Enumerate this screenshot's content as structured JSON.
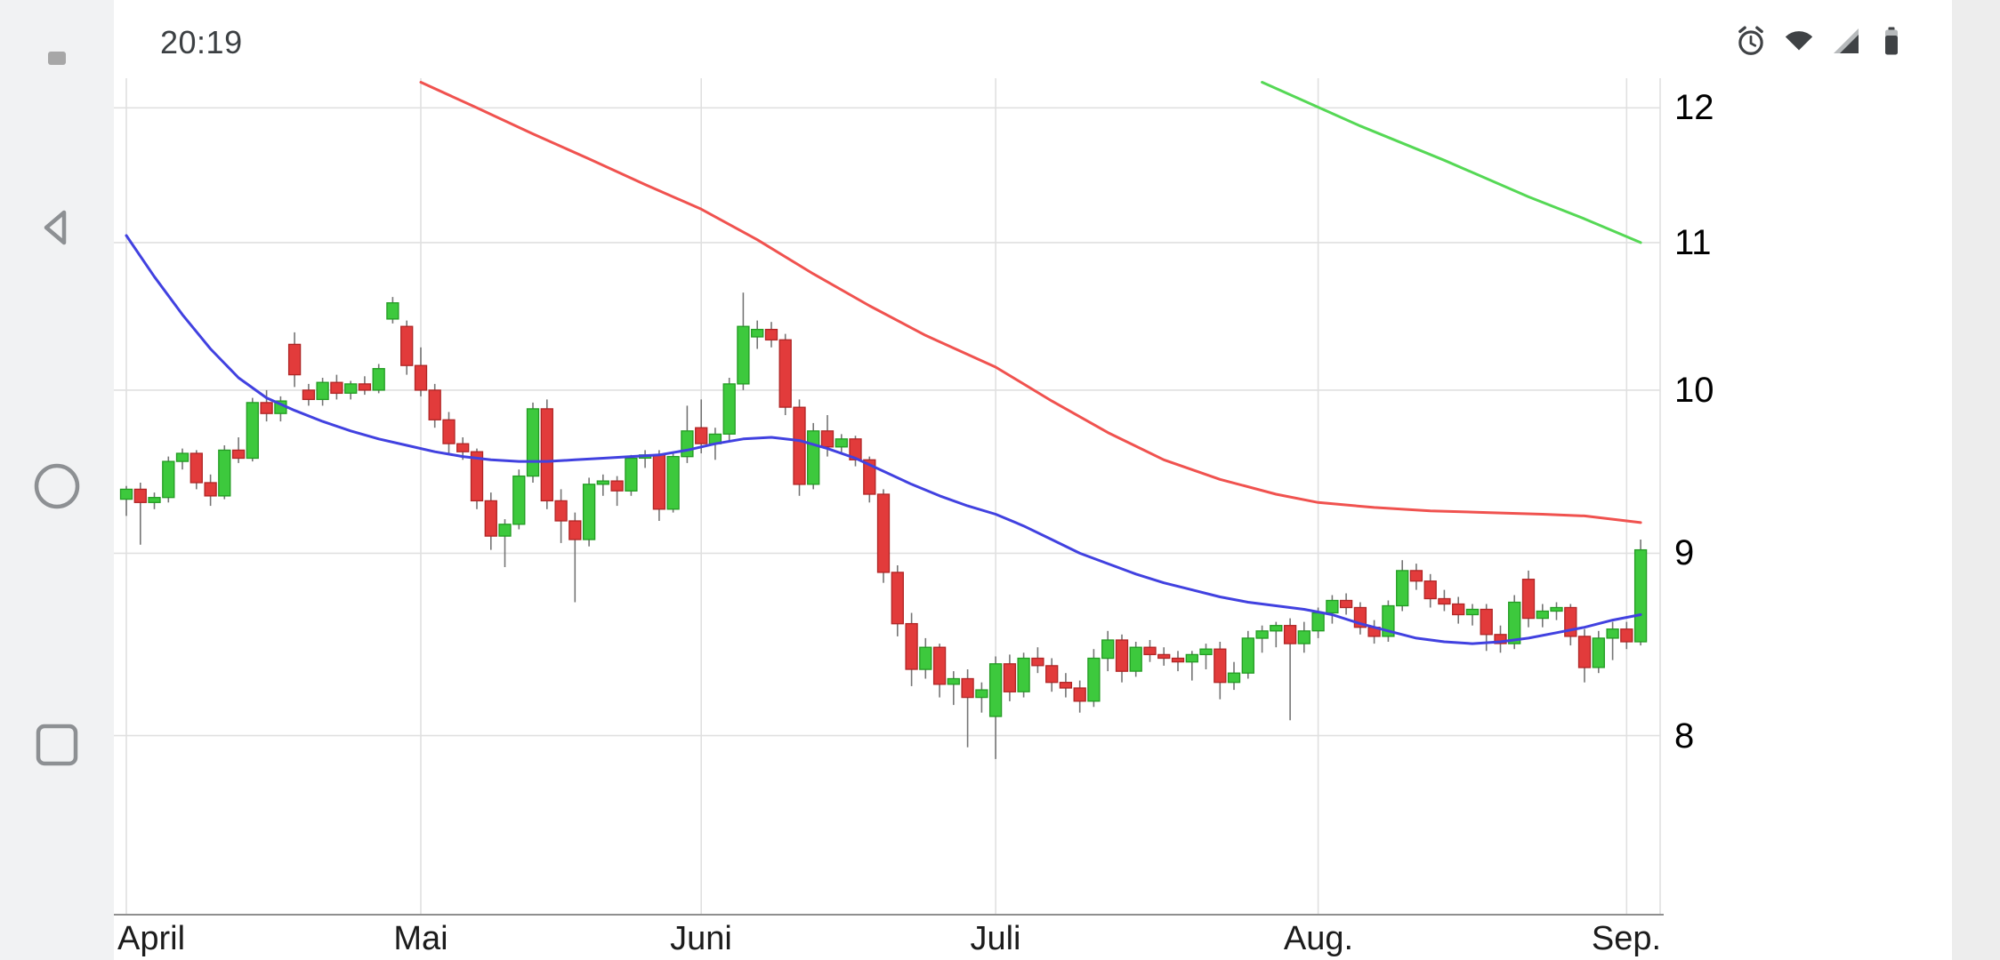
{
  "statusbar": {
    "time": "20:19",
    "icons": [
      "alarm-icon",
      "wifi-icon",
      "signal-icon",
      "battery-icon"
    ]
  },
  "navigation": {
    "buttons": [
      "back",
      "home",
      "recents"
    ]
  },
  "colors": {
    "up": "#3dc93d",
    "up_border": "#239b23",
    "down": "#e23b3b",
    "down_border": "#b02525",
    "wick": "#757575",
    "grid": "#e0e0e0",
    "axis": "#8f8f8f",
    "ma_long_red": "#f0524f",
    "ma_short_blue": "#4141e0",
    "ma_green": "#55d855",
    "navbar_bg": "#f1f2f3",
    "status_fg": "#3f4245"
  },
  "chart_data": {
    "type": "candlestick",
    "title": "",
    "x_axis": {
      "labels": [
        "April",
        "Mai",
        "Juni",
        "Juli",
        "Aug.",
        "Sep."
      ],
      "tick_indices": [
        0,
        21,
        41,
        62,
        85,
        107
      ]
    },
    "y_axis": {
      "ticks": [
        8,
        9,
        10,
        11,
        12
      ],
      "scale": "log",
      "visible_range": [
        7.1,
        12.2
      ],
      "position": "right"
    },
    "series": [
      {
        "name": "price-candles",
        "type": "candlestick",
        "ohlc": [
          [
            9.32,
            9.4,
            9.22,
            9.38
          ],
          [
            9.38,
            9.42,
            9.05,
            9.3
          ],
          [
            9.3,
            9.36,
            9.26,
            9.33
          ],
          [
            9.33,
            9.58,
            9.3,
            9.55
          ],
          [
            9.55,
            9.63,
            9.5,
            9.6
          ],
          [
            9.6,
            9.62,
            9.38,
            9.42
          ],
          [
            9.42,
            9.47,
            9.28,
            9.34
          ],
          [
            9.34,
            9.65,
            9.32,
            9.62
          ],
          [
            9.62,
            9.7,
            9.54,
            9.57
          ],
          [
            9.57,
            9.95,
            9.55,
            9.92
          ],
          [
            9.92,
            10.0,
            9.8,
            9.85
          ],
          [
            9.85,
            9.96,
            9.8,
            9.93
          ],
          [
            10.3,
            10.38,
            10.02,
            10.1
          ],
          [
            10.0,
            10.04,
            9.9,
            9.94
          ],
          [
            9.94,
            10.08,
            9.9,
            10.05
          ],
          [
            10.05,
            10.1,
            9.94,
            9.98
          ],
          [
            9.98,
            10.06,
            9.94,
            10.04
          ],
          [
            10.04,
            10.09,
            9.97,
            10.0
          ],
          [
            10.0,
            10.17,
            9.98,
            10.14
          ],
          [
            10.47,
            10.62,
            10.44,
            10.58
          ],
          [
            10.42,
            10.46,
            10.1,
            10.16
          ],
          [
            10.16,
            10.28,
            9.96,
            10.0
          ],
          [
            10.0,
            10.04,
            9.76,
            9.81
          ],
          [
            9.81,
            9.86,
            9.6,
            9.66
          ],
          [
            9.66,
            9.7,
            9.56,
            9.61
          ],
          [
            9.61,
            9.63,
            9.26,
            9.31
          ],
          [
            9.31,
            9.36,
            9.02,
            9.1
          ],
          [
            9.1,
            9.2,
            8.92,
            9.17
          ],
          [
            9.17,
            9.5,
            9.14,
            9.46
          ],
          [
            9.46,
            9.92,
            9.42,
            9.88
          ],
          [
            9.88,
            9.94,
            9.26,
            9.31
          ],
          [
            9.31,
            9.38,
            9.06,
            9.19
          ],
          [
            9.19,
            9.24,
            8.72,
            9.08
          ],
          [
            9.08,
            9.45,
            9.04,
            9.41
          ],
          [
            9.41,
            9.47,
            9.34,
            9.43
          ],
          [
            9.43,
            9.46,
            9.28,
            9.37
          ],
          [
            9.37,
            9.59,
            9.34,
            9.57
          ],
          [
            9.57,
            9.62,
            9.51,
            9.59
          ],
          [
            9.59,
            9.62,
            9.19,
            9.26
          ],
          [
            9.26,
            9.61,
            9.24,
            9.58
          ],
          [
            9.58,
            9.9,
            9.54,
            9.74
          ],
          [
            9.76,
            9.94,
            9.6,
            9.66
          ],
          [
            9.66,
            9.76,
            9.56,
            9.72
          ],
          [
            9.72,
            10.08,
            9.68,
            10.04
          ],
          [
            10.04,
            10.65,
            10.0,
            10.42
          ],
          [
            10.35,
            10.46,
            10.27,
            10.4
          ],
          [
            10.4,
            10.45,
            10.28,
            10.33
          ],
          [
            10.33,
            10.37,
            9.84,
            9.89
          ],
          [
            9.89,
            9.94,
            9.34,
            9.41
          ],
          [
            9.41,
            9.79,
            9.38,
            9.74
          ],
          [
            9.74,
            9.84,
            9.58,
            9.64
          ],
          [
            9.64,
            9.72,
            9.6,
            9.69
          ],
          [
            9.69,
            9.71,
            9.52,
            9.56
          ],
          [
            9.56,
            9.58,
            9.3,
            9.35
          ],
          [
            9.35,
            9.38,
            8.83,
            8.89
          ],
          [
            8.89,
            8.93,
            8.53,
            8.6
          ],
          [
            8.6,
            8.66,
            8.26,
            8.35
          ],
          [
            8.35,
            8.52,
            8.3,
            8.47
          ],
          [
            8.47,
            8.49,
            8.2,
            8.27
          ],
          [
            8.27,
            8.34,
            8.16,
            8.3
          ],
          [
            8.3,
            8.35,
            7.94,
            8.2
          ],
          [
            8.2,
            8.28,
            8.12,
            8.24
          ],
          [
            8.1,
            8.42,
            7.88,
            8.38
          ],
          [
            8.38,
            8.43,
            8.18,
            8.23
          ],
          [
            8.23,
            8.44,
            8.2,
            8.41
          ],
          [
            8.41,
            8.47,
            8.33,
            8.37
          ],
          [
            8.37,
            8.41,
            8.23,
            8.28
          ],
          [
            8.28,
            8.33,
            8.2,
            8.25
          ],
          [
            8.25,
            8.29,
            8.12,
            8.18
          ],
          [
            8.18,
            8.46,
            8.15,
            8.41
          ],
          [
            8.41,
            8.56,
            8.34,
            8.51
          ],
          [
            8.51,
            8.54,
            8.28,
            8.34
          ],
          [
            8.34,
            8.5,
            8.31,
            8.47
          ],
          [
            8.47,
            8.51,
            8.39,
            8.43
          ],
          [
            8.43,
            8.47,
            8.37,
            8.41
          ],
          [
            8.41,
            8.45,
            8.34,
            8.39
          ],
          [
            8.39,
            8.45,
            8.29,
            8.43
          ],
          [
            8.43,
            8.49,
            8.35,
            8.46
          ],
          [
            8.46,
            8.5,
            8.19,
            8.28
          ],
          [
            8.28,
            8.39,
            8.24,
            8.33
          ],
          [
            8.33,
            8.56,
            8.3,
            8.52
          ],
          [
            8.52,
            8.59,
            8.44,
            8.56
          ],
          [
            8.56,
            8.61,
            8.47,
            8.59
          ],
          [
            8.59,
            8.63,
            8.08,
            8.49
          ],
          [
            8.49,
            8.61,
            8.44,
            8.56
          ],
          [
            8.56,
            8.69,
            8.52,
            8.66
          ],
          [
            8.66,
            8.76,
            8.6,
            8.73
          ],
          [
            8.73,
            8.77,
            8.65,
            8.69
          ],
          [
            8.69,
            8.72,
            8.54,
            8.58
          ],
          [
            8.58,
            8.62,
            8.49,
            8.53
          ],
          [
            8.53,
            8.73,
            8.5,
            8.7
          ],
          [
            8.7,
            8.96,
            8.67,
            8.9
          ],
          [
            8.9,
            8.94,
            8.79,
            8.84
          ],
          [
            8.84,
            8.88,
            8.69,
            8.74
          ],
          [
            8.74,
            8.79,
            8.67,
            8.71
          ],
          [
            8.71,
            8.75,
            8.6,
            8.65
          ],
          [
            8.65,
            8.71,
            8.59,
            8.68
          ],
          [
            8.68,
            8.71,
            8.45,
            8.54
          ],
          [
            8.54,
            8.59,
            8.44,
            8.49
          ],
          [
            8.49,
            8.76,
            8.46,
            8.72
          ],
          [
            8.85,
            8.9,
            8.58,
            8.63
          ],
          [
            8.63,
            8.71,
            8.58,
            8.67
          ],
          [
            8.67,
            8.72,
            8.62,
            8.69
          ],
          [
            8.69,
            8.71,
            8.48,
            8.53
          ],
          [
            8.53,
            8.57,
            8.28,
            8.36
          ],
          [
            8.36,
            8.56,
            8.33,
            8.52
          ],
          [
            8.52,
            8.61,
            8.4,
            8.57
          ],
          [
            8.57,
            8.61,
            8.46,
            8.5
          ],
          [
            8.5,
            9.08,
            8.48,
            9.02
          ]
        ]
      },
      {
        "name": "ma-long-red",
        "type": "line",
        "color": "#f0524f",
        "points": [
          [
            21,
            12.2
          ],
          [
            25,
            12.0
          ],
          [
            29,
            11.8
          ],
          [
            33,
            11.61
          ],
          [
            37,
            11.42
          ],
          [
            41,
            11.24
          ],
          [
            45,
            11.02
          ],
          [
            49,
            10.78
          ],
          [
            53,
            10.56
          ],
          [
            57,
            10.36
          ],
          [
            62,
            10.15
          ],
          [
            66,
            9.93
          ],
          [
            70,
            9.73
          ],
          [
            74,
            9.56
          ],
          [
            78,
            9.44
          ],
          [
            82,
            9.35
          ],
          [
            85,
            9.3
          ],
          [
            89,
            9.27
          ],
          [
            93,
            9.25
          ],
          [
            97,
            9.24
          ],
          [
            101,
            9.23
          ],
          [
            104,
            9.22
          ],
          [
            108,
            9.18
          ]
        ]
      },
      {
        "name": "ma-short-blue",
        "type": "line",
        "color": "#4141e0",
        "points": [
          [
            0,
            11.05
          ],
          [
            2,
            10.76
          ],
          [
            4,
            10.5
          ],
          [
            6,
            10.27
          ],
          [
            8,
            10.08
          ],
          [
            10,
            9.95
          ],
          [
            12,
            9.87
          ],
          [
            14,
            9.8
          ],
          [
            16,
            9.74
          ],
          [
            18,
            9.69
          ],
          [
            20,
            9.65
          ],
          [
            22,
            9.61
          ],
          [
            24,
            9.58
          ],
          [
            26,
            9.56
          ],
          [
            28,
            9.55
          ],
          [
            30,
            9.55
          ],
          [
            32,
            9.56
          ],
          [
            34,
            9.57
          ],
          [
            36,
            9.58
          ],
          [
            38,
            9.59
          ],
          [
            40,
            9.62
          ],
          [
            42,
            9.66
          ],
          [
            44,
            9.69
          ],
          [
            46,
            9.7
          ],
          [
            48,
            9.68
          ],
          [
            50,
            9.63
          ],
          [
            52,
            9.57
          ],
          [
            54,
            9.49
          ],
          [
            56,
            9.41
          ],
          [
            58,
            9.34
          ],
          [
            60,
            9.28
          ],
          [
            62,
            9.23
          ],
          [
            64,
            9.16
          ],
          [
            66,
            9.08
          ],
          [
            68,
            9.0
          ],
          [
            70,
            8.94
          ],
          [
            72,
            8.88
          ],
          [
            74,
            8.83
          ],
          [
            76,
            8.79
          ],
          [
            78,
            8.75
          ],
          [
            80,
            8.72
          ],
          [
            82,
            8.7
          ],
          [
            84,
            8.68
          ],
          [
            86,
            8.65
          ],
          [
            88,
            8.6
          ],
          [
            90,
            8.56
          ],
          [
            92,
            8.52
          ],
          [
            94,
            8.5
          ],
          [
            96,
            8.49
          ],
          [
            98,
            8.5
          ],
          [
            100,
            8.52
          ],
          [
            102,
            8.55
          ],
          [
            104,
            8.58
          ],
          [
            106,
            8.62
          ],
          [
            108,
            8.65
          ]
        ]
      },
      {
        "name": "ma-trend-green",
        "type": "line",
        "color": "#55d855",
        "points": [
          [
            81,
            12.2
          ],
          [
            88,
            11.86
          ],
          [
            94,
            11.6
          ],
          [
            100,
            11.33
          ],
          [
            104,
            11.17
          ],
          [
            108,
            11.0
          ]
        ]
      }
    ]
  }
}
